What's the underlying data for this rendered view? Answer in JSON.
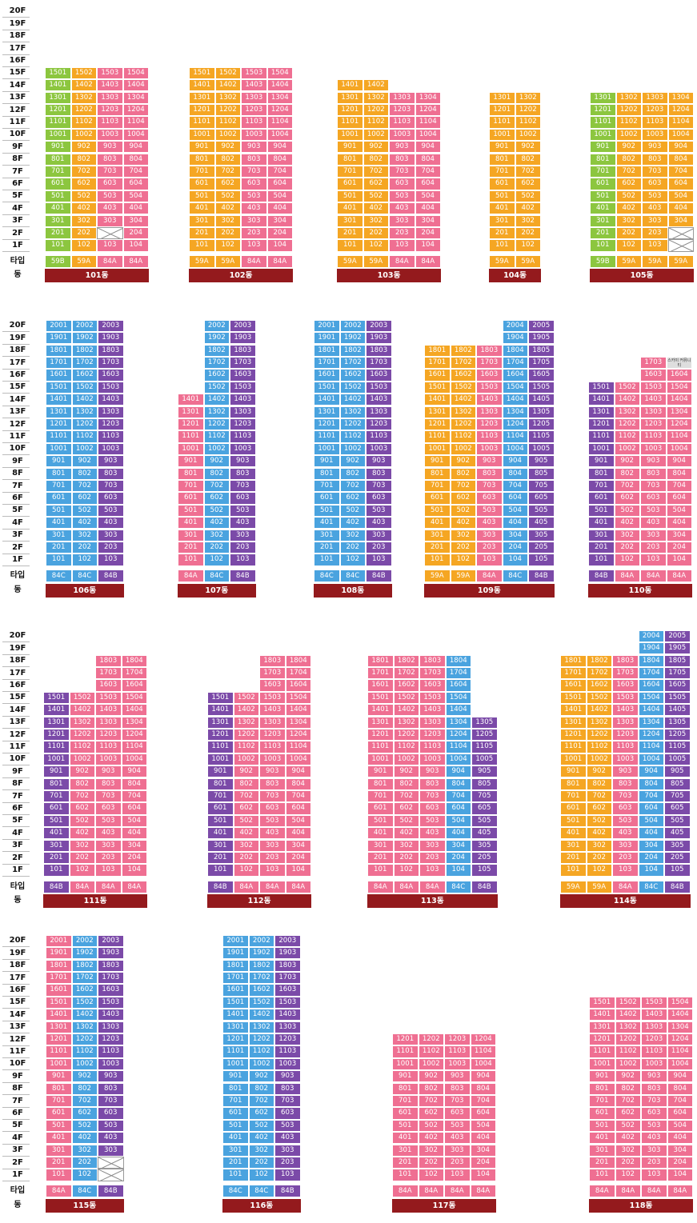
{
  "labels": {
    "type_row": "타입",
    "dong_row": "동"
  },
  "empty_icon": "crossed-box-icon",
  "colors": {
    "59B": "#8cc63f",
    "59A": "#f5a623",
    "84A": "#ef6f92",
    "84B": "#7b4aa8",
    "84C": "#4aa3df",
    "comm": "#dedede",
    "bar": "#941a1d"
  },
  "buildings": [
    {
      "dong": "101동",
      "types": [
        "59B",
        "59A",
        "84A",
        "84A"
      ],
      "top": 15,
      "tops": [
        15,
        15,
        15,
        15
      ],
      "empty": [
        [
          2,
          2
        ]
      ],
      "special": []
    },
    {
      "dong": "102동",
      "types": [
        "59A",
        "59A",
        "84A",
        "84A"
      ],
      "top": 15,
      "tops": [
        15,
        15,
        15,
        15
      ],
      "empty": [],
      "special": []
    },
    {
      "dong": "103동",
      "types": [
        "59A",
        "59A",
        "84A",
        "84A"
      ],
      "top": 14,
      "tops": [
        14,
        14,
        13,
        13
      ],
      "empty": [],
      "special": []
    },
    {
      "dong": "104동",
      "types": [
        "59A",
        "59A"
      ],
      "top": 13,
      "tops": [
        13,
        13
      ],
      "empty": [],
      "special": []
    },
    {
      "dong": "105동",
      "types": [
        "59B",
        "59A",
        "59A",
        "59A"
      ],
      "top": 13,
      "tops": [
        13,
        13,
        13,
        13
      ],
      "empty": [
        [
          3,
          1
        ],
        [
          3,
          2
        ]
      ],
      "special": []
    },
    {
      "dong": "106동",
      "types": [
        "84C",
        "84C",
        "84B"
      ],
      "top": 20,
      "tops": [
        20,
        20,
        20
      ],
      "empty": [],
      "special": []
    },
    {
      "dong": "107동",
      "types": [
        "84A",
        "84C",
        "84B"
      ],
      "top": 20,
      "tops": [
        14,
        20,
        20
      ],
      "empty": [],
      "special": []
    },
    {
      "dong": "108동",
      "types": [
        "84C",
        "84C",
        "84B"
      ],
      "top": 20,
      "tops": [
        20,
        20,
        20
      ],
      "empty": [],
      "special": []
    },
    {
      "dong": "109동",
      "types": [
        "59A",
        "59A",
        "84A",
        "84C",
        "84B"
      ],
      "top": 20,
      "tops": [
        18,
        18,
        18,
        20,
        20
      ],
      "empty": [],
      "special": []
    },
    {
      "dong": "110동",
      "types": [
        "84B",
        "84A",
        "84A",
        "84A"
      ],
      "top": 17,
      "tops": [
        15,
        15,
        17,
        17
      ],
      "empty": [],
      "special": [
        {
          "col": 3,
          "floor": 17,
          "text": "스카이 커뮤니티"
        }
      ]
    },
    {
      "dong": "111동",
      "types": [
        "84B",
        "84A",
        "84A",
        "84A"
      ],
      "top": 18,
      "tops": [
        15,
        15,
        18,
        18
      ],
      "empty": [],
      "special": []
    },
    {
      "dong": "112동",
      "types": [
        "84B",
        "84A",
        "84A",
        "84A"
      ],
      "top": 18,
      "tops": [
        15,
        15,
        18,
        18
      ],
      "empty": [],
      "special": []
    },
    {
      "dong": "113동",
      "types": [
        "84A",
        "84A",
        "84A",
        "84C",
        "84B"
      ],
      "top": 18,
      "tops": [
        18,
        18,
        18,
        18,
        13
      ],
      "empty": [],
      "special": []
    },
    {
      "dong": "114동",
      "types": [
        "59A",
        "59A",
        "84A",
        "84C",
        "84B"
      ],
      "top": 20,
      "tops": [
        18,
        18,
        18,
        20,
        20
      ],
      "empty": [],
      "special": []
    },
    {
      "dong": "115동",
      "types": [
        "84A",
        "84C",
        "84B"
      ],
      "top": 20,
      "tops": [
        20,
        20,
        20
      ],
      "empty": [
        [
          2,
          2
        ],
        [
          2,
          1
        ]
      ],
      "special": []
    },
    {
      "dong": "116동",
      "types": [
        "84C",
        "84C",
        "84B"
      ],
      "top": 20,
      "tops": [
        20,
        20,
        20
      ],
      "empty": [],
      "special": []
    },
    {
      "dong": "117동",
      "types": [
        "84A",
        "84A",
        "84A",
        "84A"
      ],
      "top": 12,
      "tops": [
        12,
        12,
        12,
        12
      ],
      "empty": [],
      "special": []
    },
    {
      "dong": "118동",
      "types": [
        "84A",
        "84A",
        "84A",
        "84A"
      ],
      "top": 15,
      "tops": [
        15,
        15,
        15,
        15
      ],
      "empty": [],
      "special": []
    }
  ]
}
